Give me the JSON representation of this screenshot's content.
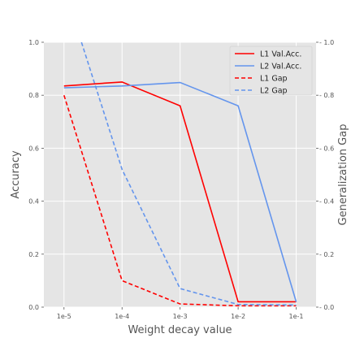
{
  "chart_data": {
    "type": "line",
    "xlabel": "Weight decay value",
    "ylabel": "Accuracy",
    "ylabel_right": "Generalization Gap",
    "x_scale": "log",
    "categories": [
      "1e-5",
      "1e-4",
      "1e-3",
      "1e-2",
      "1e-1"
    ],
    "x_values": [
      1e-05,
      0.0001,
      0.001,
      0.01,
      0.1
    ],
    "xlim": [
      4.5e-06,
      0.22
    ],
    "ylim": [
      0,
      1.0
    ],
    "ylim_right": [
      0,
      1.0
    ],
    "y_ticks": [
      "0.0",
      "0.2",
      "0.4",
      "0.6",
      "0.8",
      "1.0"
    ],
    "y_ticks_right": [
      "0.0",
      "0.2",
      "0.4",
      "0.6",
      "0.8",
      "1.0"
    ],
    "grid": true,
    "legend_position": "top-right",
    "series": [
      {
        "name": "L1 Val.Acc.",
        "axis": "left",
        "color": "#ff0000",
        "dash": "solid",
        "x": [
          1e-05,
          0.0001,
          0.001,
          0.01,
          0.1
        ],
        "y": [
          0.835,
          0.85,
          0.76,
          0.02,
          0.02
        ]
      },
      {
        "name": "L2 Val.Acc.",
        "axis": "left",
        "color": "#6495ed",
        "dash": "solid",
        "x": [
          1e-05,
          0.0001,
          0.001,
          0.01,
          0.1
        ],
        "y": [
          0.828,
          0.835,
          0.848,
          0.76,
          0.02
        ]
      },
      {
        "name": "L1 Gap",
        "axis": "right",
        "color": "#ff0000",
        "dash": "dashed",
        "x": [
          1e-05,
          0.0001,
          0.001,
          0.01,
          0.1
        ],
        "y": [
          0.8,
          0.1,
          0.012,
          0.005,
          0.005
        ]
      },
      {
        "name": "L2 Gap",
        "axis": "right",
        "color": "#6495ed",
        "dash": "dashed",
        "x": [
          2e-05,
          0.0001,
          0.001,
          0.01,
          0.1
        ],
        "y": [
          1.0,
          0.52,
          0.07,
          0.01,
          0.008
        ]
      }
    ]
  }
}
